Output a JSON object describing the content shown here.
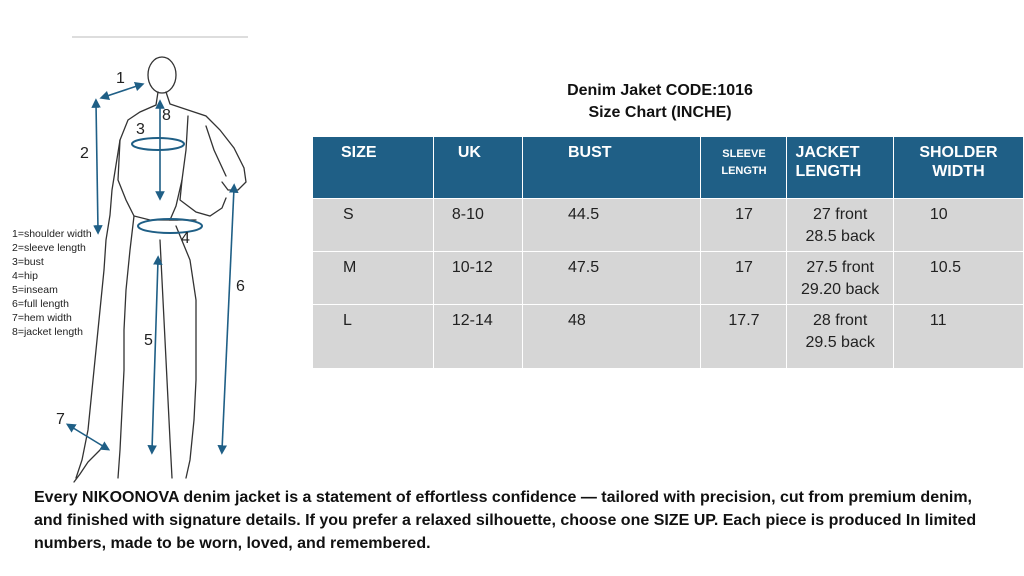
{
  "diagram": {
    "numbers": [
      "1",
      "2",
      "3",
      "8",
      "4",
      "5",
      "6",
      "7"
    ],
    "legend": [
      "1=shoulder width",
      "2=sleeve length",
      "3=bust",
      "4=hip",
      "5=inseam",
      "6=full length",
      "7=hem width",
      "8=jacket length"
    ]
  },
  "title": {
    "line1": "Denim Jaket CODE:1016",
    "line2": "Size Chart (INCHE)"
  },
  "table": {
    "headers": [
      "SIZE",
      "UK",
      "BUST",
      "SLEEVE LENGTH",
      "JACKET LENGTH",
      "SHOLDER WIDTH"
    ],
    "rows": [
      {
        "size": "S",
        "uk": "8-10",
        "bust": "44.5",
        "sleeve": "17",
        "jacket_front": "27  front",
        "jacket_back": "28.5 back",
        "shoulder": "10"
      },
      {
        "size": "M",
        "uk": "10-12",
        "bust": "47.5",
        "sleeve": "17",
        "jacket_front": "27.5 front",
        "jacket_back": "29.20 back",
        "shoulder": "10.5"
      },
      {
        "size": "L",
        "uk": "12-14",
        "bust": "48",
        "sleeve": "17.7",
        "jacket_front": "28  front",
        "jacket_back": "29.5 back",
        "shoulder": "11"
      }
    ]
  },
  "description": "Every NIKOONOVA denim jacket is a statement of effortless confidence — tailored with precision, cut from premium denim, and finished with signature details. If you prefer a relaxed silhouette, choose one SIZE UP. Each piece is produced In limited numbers, made to be worn, loved, and remembered.",
  "colors": {
    "header_bg": "#1f5f86",
    "cell_bg": "#d6d6d6",
    "arrow": "#1f5f86"
  }
}
